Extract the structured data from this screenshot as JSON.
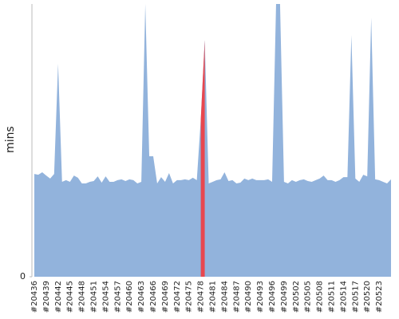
{
  "chart_data": {
    "type": "area",
    "y_label": "mins",
    "categories": [
      "#20436",
      null,
      null,
      "#20439",
      null,
      null,
      "#20442",
      null,
      null,
      "#20445",
      null,
      null,
      "#20448",
      null,
      null,
      "#20451",
      null,
      null,
      "#20454",
      null,
      null,
      "#20457",
      null,
      null,
      "#20460",
      null,
      null,
      "#20463",
      null,
      null,
      "#20466",
      null,
      null,
      "#20469",
      null,
      null,
      "#20472",
      null,
      null,
      "#20475",
      null,
      null,
      "#20478",
      null,
      null,
      "#20481",
      null,
      null,
      "#20484",
      null,
      null,
      "#20487",
      null,
      null,
      "#20490",
      null,
      null,
      "#20493",
      null,
      null,
      "#20496",
      null,
      null,
      "#20499",
      null,
      null,
      "#20502",
      null,
      null,
      "#20505",
      null,
      null,
      "#20508",
      null,
      null,
      "#20511",
      null,
      null,
      "#20514",
      null,
      null,
      "#20517",
      null,
      null,
      "#20520",
      null,
      null,
      "#20523",
      null,
      null,
      null
    ],
    "values": [
      37.7,
      37.4,
      38.3,
      37.1,
      36.0,
      37.7,
      78.1,
      34.8,
      35.4,
      34.8,
      37.1,
      36.3,
      34.2,
      34.2,
      34.8,
      35.1,
      36.8,
      34.5,
      36.8,
      34.8,
      34.8,
      35.4,
      35.7,
      35.1,
      35.7,
      35.4,
      34.2,
      34.8,
      100,
      44.2,
      44.2,
      34.2,
      36.5,
      34.8,
      38.0,
      34.2,
      35.4,
      35.4,
      35.7,
      35.4,
      36.3,
      35.4,
      57.6,
      86.8,
      34.2,
      34.8,
      35.4,
      35.7,
      38.3,
      35.1,
      35.4,
      34.2,
      34.5,
      36.0,
      35.4,
      36.0,
      35.4,
      35.4,
      35.4,
      35.7,
      34.8,
      100,
      100,
      34.8,
      34.2,
      35.4,
      34.8,
      35.4,
      35.7,
      35.1,
      34.8,
      35.4,
      36.0,
      37.1,
      35.4,
      35.4,
      34.8,
      35.4,
      36.5,
      36.5,
      88.6,
      36.0,
      34.8,
      37.4,
      36.8,
      95.0,
      35.7,
      35.4,
      34.8,
      34.2,
      35.7
    ],
    "color": "#92b3dc",
    "highlight": {
      "index": 42,
      "color": "#e8474f"
    },
    "ylim": [
      0,
      100
    ],
    "yticks": [
      0
    ]
  }
}
